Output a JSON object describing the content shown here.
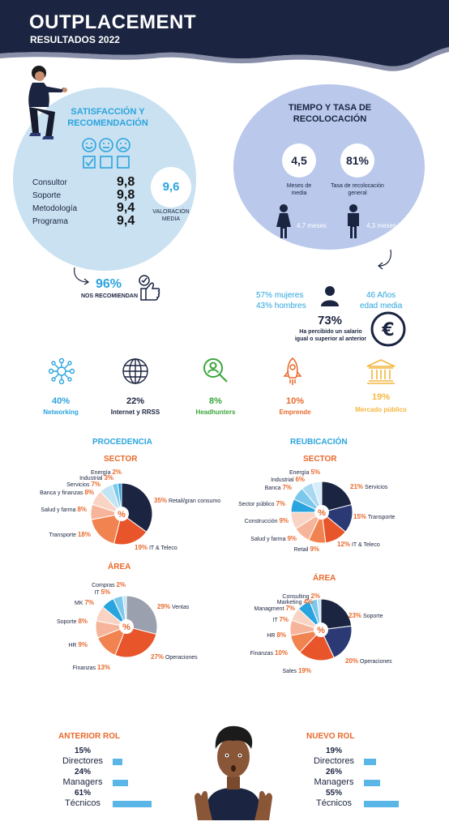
{
  "header": {
    "title": "OUTPLACEMENT",
    "subtitle": "RESULTADOS 2022"
  },
  "satisfaction": {
    "title_line1": "SATISFACCIÓN Y",
    "title_line2": "RECOMENDACIÓN",
    "rows": [
      {
        "label": "Consultor",
        "value": "9,8"
      },
      {
        "label": "Soporte",
        "value": "9,8"
      },
      {
        "label": "Metodología",
        "value": "9,4"
      },
      {
        "label": "Programa",
        "value": "9,4"
      }
    ],
    "average_value": "9,6",
    "average_label_1": "VALORACIÓN",
    "average_label_2": "MEDIA",
    "recommend_value": "96%",
    "recommend_label": "NOS RECOMIENDAN"
  },
  "time": {
    "title_line1": "TIEMPO Y TASA DE",
    "title_line2": "RECOLOCACIÓN",
    "months_value": "4,5",
    "months_label_1": "Meses de",
    "months_label_2": "media",
    "rate_value": "81%",
    "rate_label_1": "Tasa de recolocación",
    "rate_label_2": "general",
    "women_months": "4,7 meses",
    "men_months": "4,3 meses"
  },
  "demographics": {
    "women": "57% mujeres",
    "men": "43% hombres",
    "age_value": "46 Años",
    "age_label": "edad media",
    "salary_value": "73%",
    "salary_label_1": "Ha percibido un salario",
    "salary_label_2": "igual o superior al anterior"
  },
  "channels": [
    {
      "value": "40%",
      "label": "Networking",
      "color": "#2aa4de",
      "icon": "network-icon"
    },
    {
      "value": "22%",
      "label": "Internet y RRSS",
      "color": "#1b2440",
      "icon": "globe-icon"
    },
    {
      "value": "8%",
      "label": "Headhunters",
      "color": "#3aa63a",
      "icon": "headhunter-icon"
    },
    {
      "value": "10%",
      "label": "Emprende",
      "color": "#e8692c",
      "icon": "rocket-icon"
    },
    {
      "value": "19%",
      "label": "Mercado público",
      "color": "#f4b63e",
      "icon": "bank-icon"
    }
  ],
  "sections": {
    "origin": "PROCEDENCIA",
    "relocation": "REUBICACIÓN",
    "sector": "SECTOR",
    "area": "ÁREA",
    "center": "%"
  },
  "chart_data": [
    {
      "type": "pie",
      "title": "PROCEDENCIA · SECTOR",
      "categories": [
        "Retail/gran consumo",
        "IT & Teleco",
        "Transporte",
        "Salud y farma",
        "Banca y finanzas",
        "Servicios",
        "Industrial",
        "Energía"
      ],
      "values": [
        35,
        19,
        18,
        8,
        8,
        7,
        3,
        2
      ],
      "labels": [
        "35%",
        "19%",
        "18%",
        "8%",
        "8%",
        "7%",
        "3%",
        "2%"
      ],
      "colors": [
        "#1b2440",
        "#e8552a",
        "#f08350",
        "#f6b59a",
        "#f9d4c4",
        "#c3e4f5",
        "#7cc7ec",
        "#2aa4de"
      ]
    },
    {
      "type": "pie",
      "title": "REUBICACIÓN · SECTOR",
      "categories": [
        "Servicios",
        "Transporte",
        "IT & Teleco",
        "Retail",
        "Salud y farma",
        "Construcción",
        "Sector público",
        "Banca",
        "Industrial",
        "Energía"
      ],
      "values": [
        21,
        15,
        12,
        9,
        9,
        9,
        7,
        7,
        6,
        5
      ],
      "labels": [
        "21%",
        "15%",
        "12%",
        "9%",
        "9%",
        "9%",
        "7%",
        "7%",
        "6%",
        "5%"
      ],
      "colors": [
        "#1b2440",
        "#2b3a74",
        "#e8552a",
        "#f08350",
        "#f6b59a",
        "#f9d4c4",
        "#2aa4de",
        "#7cc7ec",
        "#a9d9f2",
        "#d6eefa"
      ]
    },
    {
      "type": "pie",
      "title": "PROCEDENCIA · ÁREA",
      "categories": [
        "Ventas",
        "Operaciones",
        "Finanzas",
        "HR",
        "Soporte",
        "MK",
        "IT",
        "Compras"
      ],
      "values": [
        29,
        27,
        13,
        9,
        8,
        7,
        5,
        2
      ],
      "labels": [
        "29%",
        "27%",
        "13%",
        "9%",
        "8%",
        "7%",
        "5%",
        "2%"
      ],
      "colors": [
        "#9aa0ad",
        "#e8552a",
        "#f08350",
        "#f6b59a",
        "#f9d4c4",
        "#2aa4de",
        "#7cc7ec",
        "#c3e4f5"
      ]
    },
    {
      "type": "pie",
      "title": "REUBICACIÓN · ÁREA",
      "categories": [
        "Soporte",
        "Operaciones",
        "Sales",
        "Finanzas",
        "HR",
        "IT",
        "Managment",
        "Marketing",
        "Consulting"
      ],
      "values": [
        23,
        20,
        19,
        10,
        8,
        7,
        7,
        4,
        2
      ],
      "labels": [
        "23%",
        "20%",
        "19%",
        "10%",
        "8%",
        "7%",
        "7%",
        "4%",
        "2%"
      ],
      "colors": [
        "#1b2440",
        "#2b3a74",
        "#e8552a",
        "#f08350",
        "#f6b59a",
        "#f9d4c4",
        "#2aa4de",
        "#7cc7ec",
        "#c3e4f5"
      ]
    }
  ],
  "roles": {
    "previous_title": "ANTERIOR ROL",
    "new_title": "NUEVO ROL",
    "previous": [
      {
        "pct": "15%",
        "label": "Directores",
        "fraction": 0.15
      },
      {
        "pct": "24%",
        "label": "Managers",
        "fraction": 0.24
      },
      {
        "pct": "61%",
        "label": "Técnicos",
        "fraction": 0.61
      }
    ],
    "new": [
      {
        "pct": "19%",
        "label": "Directores",
        "fraction": 0.19
      },
      {
        "pct": "26%",
        "label": "Managers",
        "fraction": 0.26
      },
      {
        "pct": "55%",
        "label": "Técnicos",
        "fraction": 0.55
      }
    ]
  },
  "colors": {
    "navy": "#1b2440",
    "sky": "#2aa4de",
    "orange": "#e8692c",
    "circle_blue": "#c9e1f1",
    "circle_lav": "#b9c8eb"
  }
}
